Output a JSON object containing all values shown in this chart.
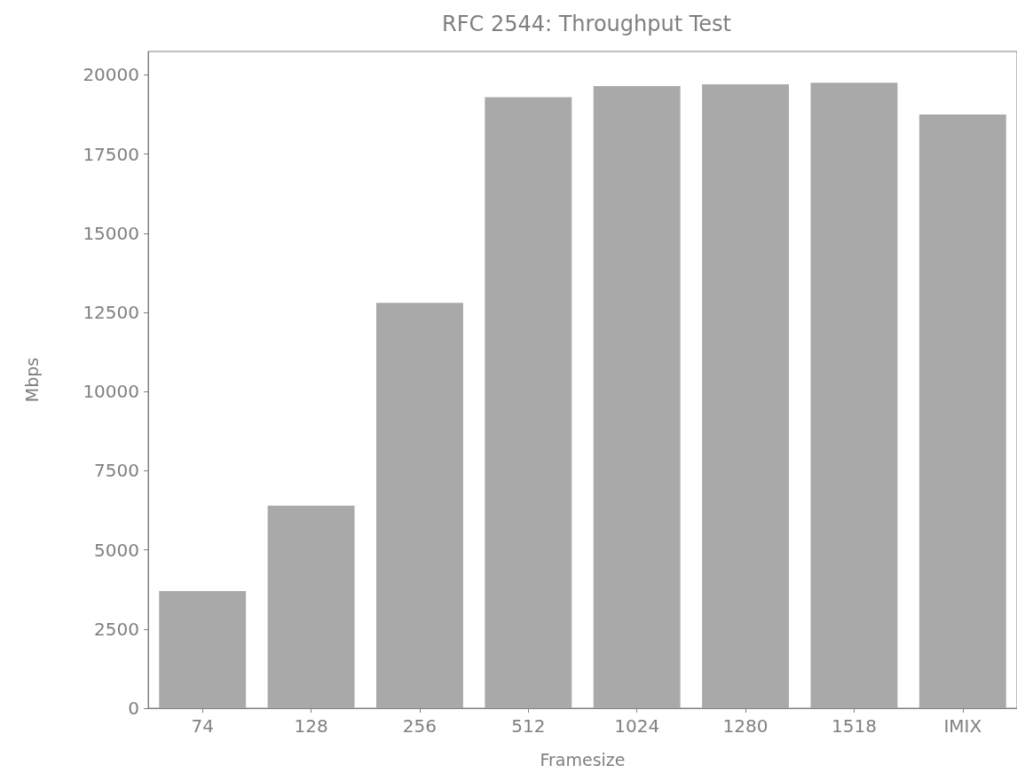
{
  "chart_data": {
    "type": "bar",
    "title": "RFC 2544: Throughput Test",
    "xlabel": "Framesize",
    "ylabel": "Mbps",
    "categories": [
      "74",
      "128",
      "256",
      "512",
      "1024",
      "1280",
      "1518",
      "IMIX"
    ],
    "values": [
      3700,
      6400,
      12800,
      19300,
      19650,
      19700,
      19750,
      18750
    ],
    "color": "#a9a9a9",
    "ylim": [
      0,
      20740
    ],
    "yticks": [
      0,
      2500,
      5000,
      7500,
      10000,
      12500,
      15000,
      17500,
      20000
    ],
    "grid": false
  }
}
